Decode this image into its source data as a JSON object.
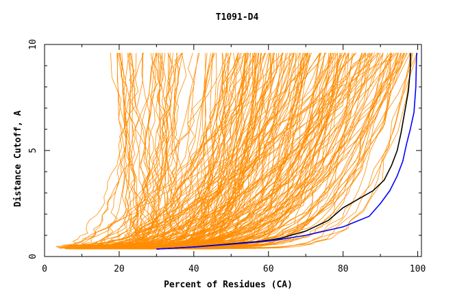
{
  "chart_data": {
    "type": "line",
    "title": "T1091-D4",
    "xlabel": "Percent of Residues (CA)",
    "ylabel": "Distance Cutoff, A",
    "xlim": [
      0,
      101
    ],
    "ylim": [
      0,
      10
    ],
    "x_ticks": [
      "0",
      "20",
      "40",
      "60",
      "80",
      "100"
    ],
    "y_ticks": [
      "0",
      "5",
      "10"
    ],
    "grid": false,
    "legend": "none",
    "colors": {
      "background_models": "#ff8c00",
      "highlight_black": "#000000",
      "highlight_blue": "#0000ff"
    },
    "highlighted_series": [
      {
        "color": "#000000",
        "x": [
          30,
          40,
          50,
          58,
          63,
          70,
          76,
          80,
          84,
          88,
          91,
          93,
          94.5,
          95.5,
          96.5,
          97.5,
          98,
          98
        ],
        "y": [
          0.35,
          0.45,
          0.6,
          0.72,
          0.85,
          1.2,
          1.7,
          2.3,
          2.7,
          3.1,
          3.6,
          4.3,
          5.0,
          5.8,
          6.8,
          7.8,
          8.8,
          9.6
        ]
      },
      {
        "color": "#0000ff",
        "x": [
          30,
          40,
          50,
          58,
          63,
          70,
          80,
          87,
          90,
          92.5,
          94.5,
          96,
          97,
          98,
          99,
          99.5,
          99.7
        ],
        "y": [
          0.35,
          0.45,
          0.58,
          0.7,
          0.8,
          1.0,
          1.4,
          1.9,
          2.5,
          3.1,
          3.8,
          4.5,
          5.3,
          6.0,
          6.8,
          8.0,
          9.6
        ]
      }
    ]
  }
}
